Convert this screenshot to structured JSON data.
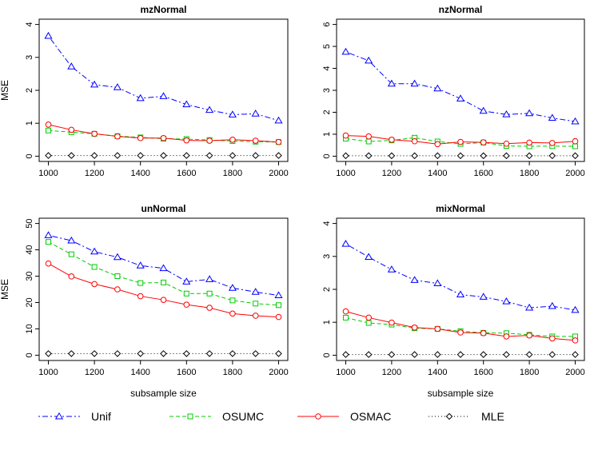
{
  "chart_data": [
    {
      "type": "line",
      "title": "mzNormal",
      "xlabel": "",
      "ylabel": "MSE",
      "x": [
        1000,
        1100,
        1200,
        1300,
        1400,
        1500,
        1600,
        1700,
        1800,
        1900,
        2000
      ],
      "xlim": [
        1000,
        2000
      ],
      "xticks": [
        1000,
        1200,
        1400,
        1600,
        1800,
        2000
      ],
      "ylim": [
        0,
        4
      ],
      "yticks": [
        0,
        1,
        2,
        3,
        4
      ],
      "series": [
        {
          "name": "Unif",
          "values": [
            3.65,
            2.72,
            2.17,
            2.09,
            1.76,
            1.82,
            1.57,
            1.4,
            1.26,
            1.29,
            1.08
          ]
        },
        {
          "name": "OSUMC",
          "values": [
            0.78,
            0.73,
            0.68,
            0.61,
            0.57,
            0.53,
            0.52,
            0.49,
            0.46,
            0.44,
            0.43
          ]
        },
        {
          "name": "OSMAC",
          "values": [
            0.96,
            0.8,
            0.68,
            0.6,
            0.55,
            0.55,
            0.48,
            0.47,
            0.5,
            0.47,
            0.43
          ]
        },
        {
          "name": "MLE",
          "values": [
            0.02,
            0.02,
            0.02,
            0.02,
            0.02,
            0.02,
            0.02,
            0.02,
            0.02,
            0.02,
            0.02
          ]
        }
      ]
    },
    {
      "type": "line",
      "title": "nzNormal",
      "xlabel": "",
      "ylabel": "",
      "x": [
        1000,
        1100,
        1200,
        1300,
        1400,
        1500,
        1600,
        1700,
        1800,
        1900,
        2000
      ],
      "xlim": [
        1000,
        2000
      ],
      "xticks": [
        1000,
        1200,
        1400,
        1600,
        1800,
        2000
      ],
      "ylim": [
        0,
        6
      ],
      "yticks": [
        0,
        1,
        2,
        3,
        4,
        5,
        6
      ],
      "series": [
        {
          "name": "Unif",
          "values": [
            4.75,
            4.35,
            3.3,
            3.3,
            3.08,
            2.62,
            2.06,
            1.9,
            1.95,
            1.74,
            1.58
          ]
        },
        {
          "name": "OSUMC",
          "values": [
            0.8,
            0.67,
            0.72,
            0.84,
            0.67,
            0.56,
            0.62,
            0.47,
            0.45,
            0.46,
            0.45
          ]
        },
        {
          "name": "OSMAC",
          "values": [
            0.94,
            0.9,
            0.75,
            0.68,
            0.55,
            0.65,
            0.63,
            0.57,
            0.62,
            0.6,
            0.68
          ]
        },
        {
          "name": "MLE",
          "values": [
            0.02,
            0.02,
            0.02,
            0.02,
            0.02,
            0.02,
            0.02,
            0.02,
            0.02,
            0.02,
            0.02
          ]
        }
      ]
    },
    {
      "type": "line",
      "title": "unNormal",
      "xlabel": "subsample size",
      "ylabel": "MSE",
      "x": [
        1000,
        1100,
        1200,
        1300,
        1400,
        1500,
        1600,
        1700,
        1800,
        1900,
        2000
      ],
      "xlim": [
        1000,
        2000
      ],
      "xticks": [
        1000,
        1200,
        1400,
        1600,
        1800,
        2000
      ],
      "ylim": [
        0,
        50
      ],
      "yticks": [
        0,
        10,
        20,
        30,
        40,
        50
      ],
      "series": [
        {
          "name": "Unif",
          "values": [
            45.5,
            43.5,
            39.3,
            37.2,
            34.0,
            33.0,
            27.9,
            28.8,
            25.5,
            24.0,
            22.7
          ]
        },
        {
          "name": "OSUMC",
          "values": [
            43.0,
            38.3,
            33.5,
            30.0,
            27.4,
            27.6,
            23.4,
            23.4,
            20.8,
            19.6,
            19.0
          ]
        },
        {
          "name": "OSMAC",
          "values": [
            34.8,
            29.9,
            27.0,
            25.0,
            22.4,
            21.0,
            19.2,
            18.0,
            15.8,
            15.0,
            14.5
          ]
        },
        {
          "name": "MLE",
          "values": [
            0.6,
            0.6,
            0.6,
            0.6,
            0.6,
            0.6,
            0.6,
            0.6,
            0.6,
            0.6,
            0.6
          ]
        }
      ]
    },
    {
      "type": "line",
      "title": "mixNormal",
      "xlabel": "subsample size",
      "ylabel": "",
      "x": [
        1000,
        1100,
        1200,
        1300,
        1400,
        1500,
        1600,
        1700,
        1800,
        1900,
        2000
      ],
      "xlim": [
        1000,
        2000
      ],
      "xticks": [
        1000,
        1200,
        1400,
        1600,
        1800,
        2000
      ],
      "ylim": [
        0,
        4
      ],
      "yticks": [
        0,
        1,
        2,
        3,
        4
      ],
      "series": [
        {
          "name": "Unif",
          "values": [
            3.38,
            2.98,
            2.6,
            2.28,
            2.18,
            1.84,
            1.77,
            1.63,
            1.44,
            1.49,
            1.37
          ]
        },
        {
          "name": "OSUMC",
          "values": [
            1.14,
            0.98,
            0.93,
            0.82,
            0.8,
            0.73,
            0.68,
            0.67,
            0.62,
            0.57,
            0.57
          ]
        },
        {
          "name": "OSMAC",
          "values": [
            1.33,
            1.14,
            0.99,
            0.84,
            0.8,
            0.69,
            0.67,
            0.57,
            0.6,
            0.51,
            0.45
          ]
        },
        {
          "name": "MLE",
          "values": [
            0.02,
            0.02,
            0.02,
            0.02,
            0.02,
            0.02,
            0.02,
            0.02,
            0.02,
            0.02,
            0.02
          ]
        }
      ]
    }
  ],
  "legend": {
    "items": [
      {
        "name": "Unif",
        "color": "#0000ff",
        "marker": "triangle-icon",
        "dash": "dot-dash"
      },
      {
        "name": "OSUMC",
        "color": "#00cc00",
        "marker": "square-icon",
        "dash": "dashed"
      },
      {
        "name": "OSMAC",
        "color": "#ff0000",
        "marker": "circle-icon",
        "dash": "solid"
      },
      {
        "name": "MLE",
        "color": "#000000",
        "marker": "diamond-icon",
        "dash": "dotted"
      }
    ]
  },
  "colors": {
    "Unif": "#0000ff",
    "OSUMC": "#00cc00",
    "OSMAC": "#ff0000",
    "MLE": "#000000"
  }
}
